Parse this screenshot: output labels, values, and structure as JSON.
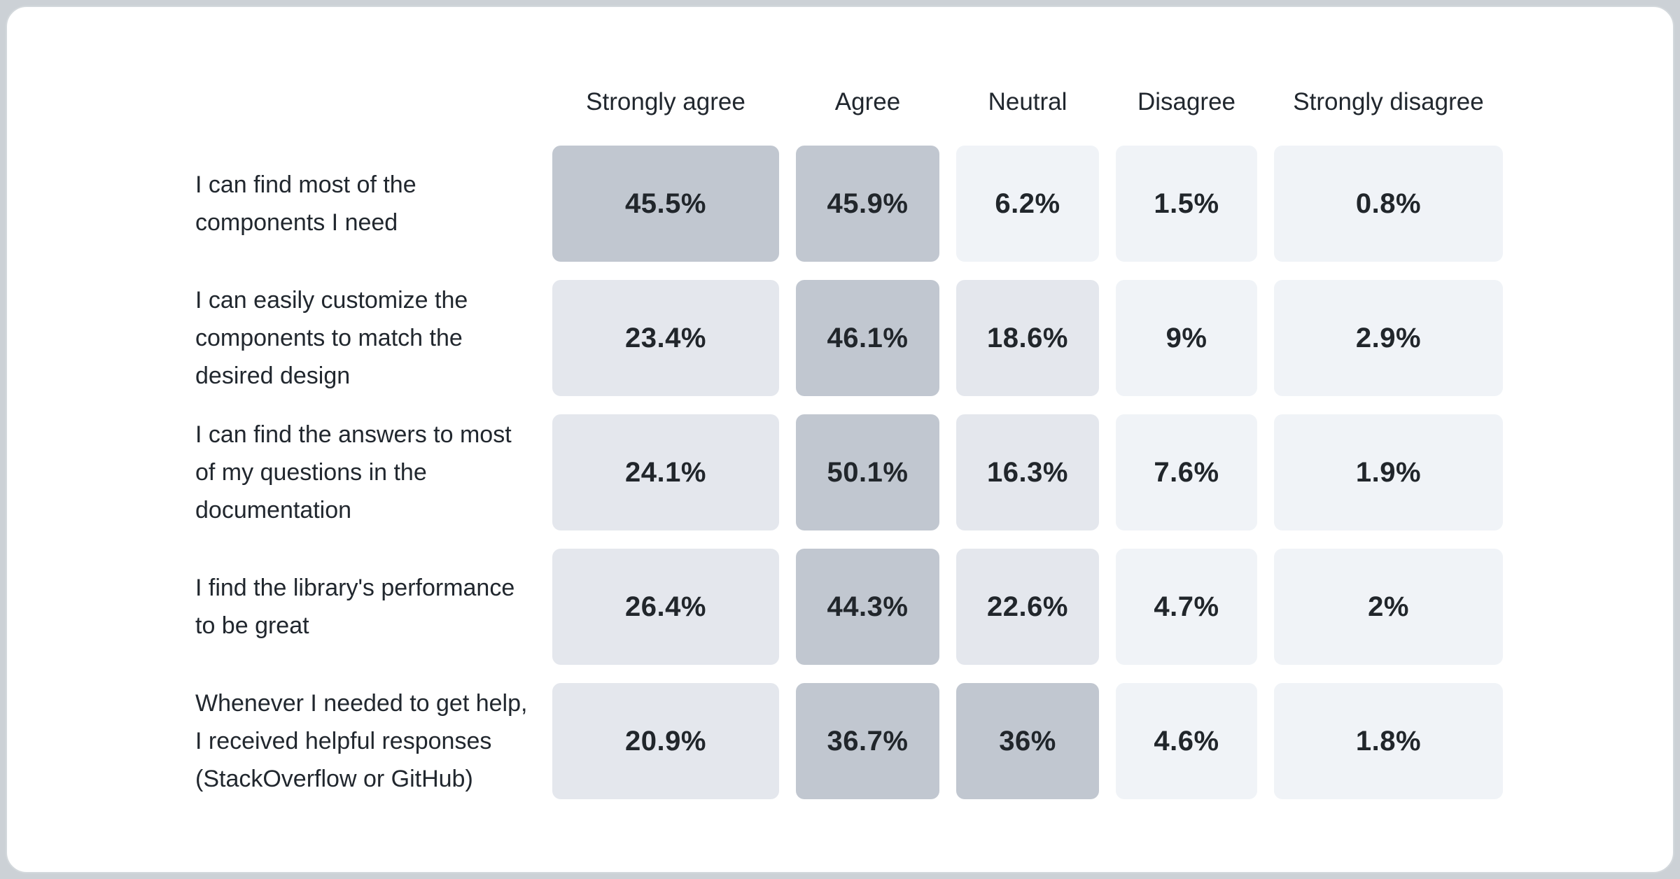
{
  "chart_data": {
    "type": "heatmap",
    "title": "",
    "columns": [
      "Strongly agree",
      "Agree",
      "Neutral",
      "Disagree",
      "Strongly disagree"
    ],
    "rows": [
      {
        "label": "I can find most of the components I need",
        "values": [
          "45.5%",
          "45.9%",
          "6.2%",
          "1.5%",
          "0.8%"
        ]
      },
      {
        "label": "I can easily customize the components to match the desired design",
        "values": [
          "23.4%",
          "46.1%",
          "18.6%",
          "9%",
          "2.9%"
        ]
      },
      {
        "label": "I can find the answers to most of my questions in the documentation",
        "values": [
          "24.1%",
          "50.1%",
          "16.3%",
          "7.6%",
          "1.9%"
        ]
      },
      {
        "label": "I find the library's performance to be great",
        "values": [
          "26.4%",
          "44.3%",
          "22.6%",
          "4.7%",
          "2%"
        ]
      },
      {
        "label": "Whenever I needed to get help, I received helpful responses (StackOverflow or GitHub)",
        "values": [
          "20.9%",
          "36.7%",
          "36%",
          "4.6%",
          "1.8%"
        ]
      }
    ],
    "color_scale": {
      "light": "#f0f3f7",
      "medium": "#e4e7ed",
      "dark": "#c1c7d0",
      "thresholds": {
        "medium_min_pct": 12,
        "dark_min_pct": 30
      }
    },
    "legend_position": "none",
    "grid": false
  },
  "theme": {
    "page_background": "#ccd1d6",
    "card_background": "#ffffff",
    "card_border": "#d3d8dc",
    "header_text": "#21272e",
    "label_text": "#21272e",
    "value_text": "#21262b"
  }
}
